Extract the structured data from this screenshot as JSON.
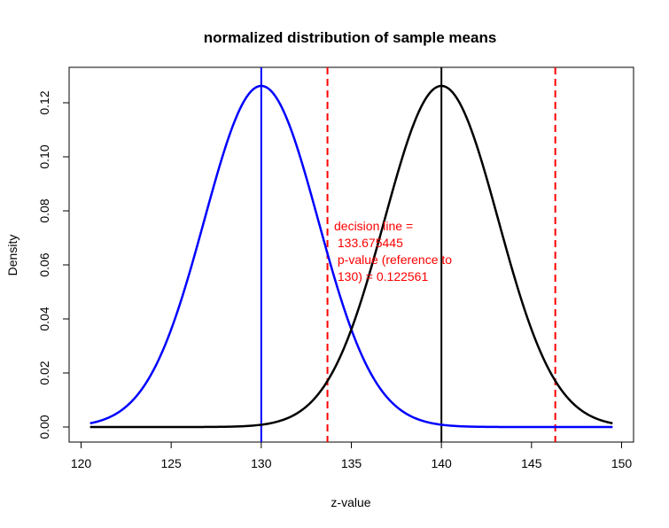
{
  "chart_data": {
    "type": "line",
    "title": "normalized distribution of sample means",
    "xlabel": "z-value",
    "ylabel": "Density",
    "xlim": [
      120.5,
      149.5
    ],
    "ylim": [
      0,
      0.126
    ],
    "x_ticks": [
      120,
      125,
      130,
      135,
      140,
      145,
      150
    ],
    "x_tick_labels": [
      "120",
      "125",
      "130",
      "135",
      "140",
      "145",
      "150"
    ],
    "y_ticks": [
      0.0,
      0.02,
      0.04,
      0.06,
      0.08,
      0.1,
      0.12
    ],
    "y_tick_labels": [
      "0.00",
      "0.02",
      "0.04",
      "0.06",
      "0.08",
      "0.10",
      "0.12"
    ],
    "grid": false,
    "series": [
      {
        "color": "#0000ff",
        "mean": 130,
        "sd": 3.16,
        "x_range": [
          120.5,
          149.5
        ]
      },
      {
        "color": "#000000",
        "mean": 140,
        "sd": 3.16,
        "x_range": [
          120.5,
          149.5
        ]
      }
    ],
    "vlines": [
      {
        "x": 130,
        "color": "#0000ff",
        "style": "solid"
      },
      {
        "x": 140,
        "color": "#000000",
        "style": "solid"
      },
      {
        "x": 133.675445,
        "color": "#ff0000",
        "style": "dashed"
      },
      {
        "x": 146.32,
        "color": "#ff0000",
        "style": "dashed"
      }
    ],
    "annotation": {
      "color": "#ff0000",
      "lines": [
        "decision line =",
        " 133.675445",
        " p-value (reference to",
        " 130) = 0.122561"
      ]
    }
  }
}
